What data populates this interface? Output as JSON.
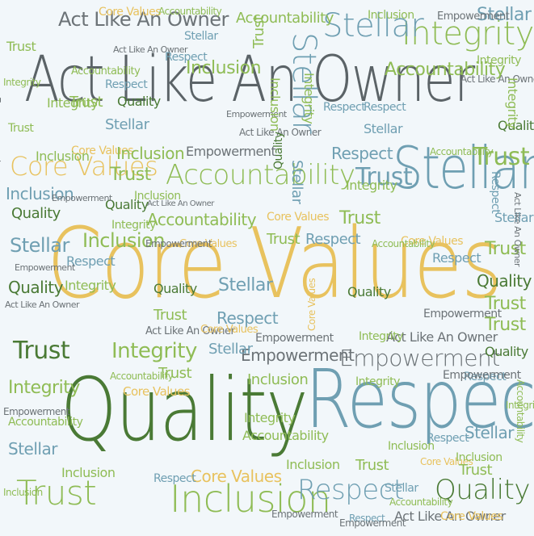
{
  "words": [
    "Act Like An Owner",
    "Core Values",
    "Quality",
    "Respect",
    "Stellar",
    "Integrity",
    "Accountability",
    "Empowerment",
    "Inclusion",
    "Trust"
  ],
  "colors": {
    "background": "#f2f7fa",
    "dark_gray": "#5b6367",
    "gold": "#e8c25e",
    "dark_green": "#4a7a35",
    "slate_blue": "#6f9fb2",
    "light_green": "#8fbc55",
    "gray": "#6c7377"
  }
}
